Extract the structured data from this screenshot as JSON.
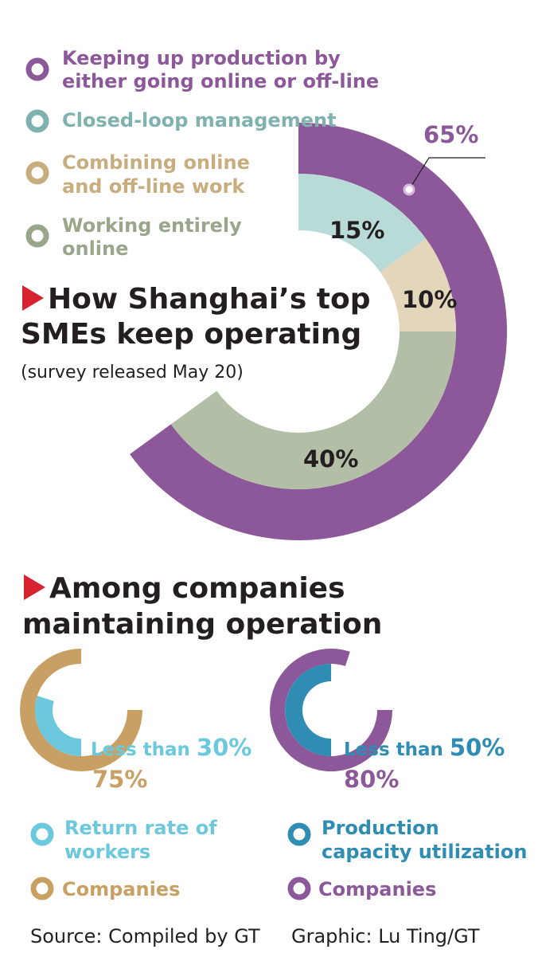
{
  "colors": {
    "purple": "#8c5899",
    "teal_light": "#b9dbd8",
    "tan_light": "#e3d6bb",
    "sage": "#b2bea6",
    "gold": "#c9a063",
    "cyan": "#6cc8dd",
    "blue": "#2f8db4",
    "red": "#d7232f",
    "legend_teal": "#7fb2ae",
    "legend_tan": "#c8ae7f",
    "legend_sage": "#9aa68b"
  },
  "chart_data": [
    {
      "type": "pie",
      "title": "How Shanghai’s top SMEs keep operating",
      "subtitle": "(survey released May 20)",
      "outer_series": [
        {
          "name": "Keeping up production by either going online or off-line",
          "value": 65,
          "label": "65%"
        }
      ],
      "inner_series": [
        {
          "name": "Closed-loop management",
          "value": 15,
          "label": "15%"
        },
        {
          "name": "Combining online and off-line work",
          "value": 10,
          "label": "10%"
        },
        {
          "name": "Working entirely online",
          "value": 40,
          "label": "40%"
        }
      ]
    },
    {
      "type": "pie",
      "title": "Among companies maintaining operation",
      "charts": [
        {
          "outer": {
            "name": "Companies",
            "value": 75,
            "label": "75%"
          },
          "inner": {
            "name": "Return rate of workers",
            "value": 30,
            "label": "Less than 30%"
          },
          "caption_prefix": "Less than ",
          "caption_value": "30%"
        },
        {
          "outer": {
            "name": "Companies",
            "value": 80,
            "label": "80%"
          },
          "inner": {
            "name": "Production capacity utilization",
            "value": 50,
            "label": "Less than 50%"
          },
          "caption_prefix": "Less than ",
          "caption_value": "50%"
        }
      ]
    }
  ],
  "legend_top": [
    {
      "line1": "Keeping up production by",
      "line2": "either going online or off-line"
    },
    {
      "line1": "Closed-loop management",
      "line2": ""
    },
    {
      "line1": "Combining online",
      "line2": "and off-line work"
    },
    {
      "line1": "Working entirely",
      "line2": "online"
    }
  ],
  "section1": {
    "title_line1": "How Shanghai’s top",
    "title_line2": "SMEs keep operating",
    "subtitle": "(survey released May 20)"
  },
  "section2": {
    "title_line1": "Among companies",
    "title_line2": "maintaining operation"
  },
  "legend_bottom": {
    "left": [
      {
        "line1": "Return rate of",
        "line2": "workers"
      },
      {
        "line1": "Companies",
        "line2": ""
      }
    ],
    "right": [
      {
        "line1": "Production",
        "line2": "capacity utilization"
      },
      {
        "line1": "Companies",
        "line2": ""
      }
    ]
  },
  "footer": {
    "source": "Source: Compiled by GT",
    "graphic": "Graphic: Lu Ting/GT"
  }
}
